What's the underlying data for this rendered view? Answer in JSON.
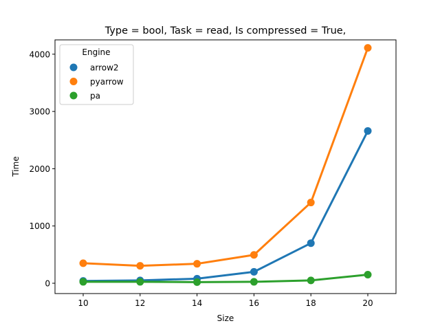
{
  "chart_data": {
    "type": "line",
    "title": "Type = bool, Task = read, Is compressed = True,",
    "xlabel": "Size",
    "ylabel": "Time",
    "x": [
      "10",
      "12",
      "14",
      "16",
      "18",
      "20"
    ],
    "ylim": [
      -180,
      4250
    ],
    "yticks": [
      0,
      1000,
      2000,
      3000,
      4000
    ],
    "grid": false,
    "legend": {
      "title": "Engine",
      "placement": "top-left"
    },
    "series": [
      {
        "name": "arrow2",
        "color": "#1f77b4",
        "values": [
          40,
          50,
          80,
          200,
          700,
          2660
        ]
      },
      {
        "name": "pyarrow",
        "color": "#ff7f0e",
        "values": [
          350,
          305,
          340,
          495,
          1410,
          4110
        ]
      },
      {
        "name": "pa",
        "color": "#2ca02c",
        "values": [
          25,
          25,
          20,
          25,
          50,
          150
        ]
      }
    ]
  }
}
